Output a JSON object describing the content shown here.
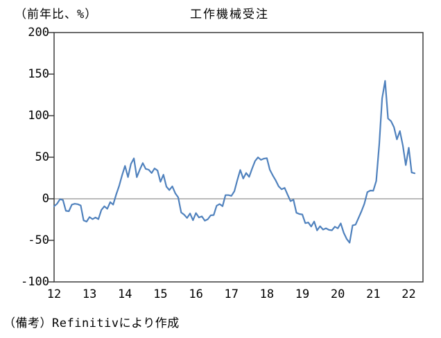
{
  "header": {
    "unit_label": "（前年比、%）",
    "title": "工作機械受注"
  },
  "footer": {
    "note": "（備考）Refinitivにより作成"
  },
  "colors": {
    "line": "#4f81bd",
    "zero_line": "#909090",
    "axis": "#3b3b3b",
    "text": "#000000",
    "background": "#ffffff"
  },
  "chart_data": {
    "type": "line",
    "title": "工作機械受注",
    "ylabel": "（前年比、%）",
    "xlabel": "",
    "frequency": "monthly",
    "x_start": "2012-01",
    "x_end": "2022-03",
    "x_tick_labels": [
      "12",
      "13",
      "14",
      "15",
      "16",
      "17",
      "18",
      "19",
      "20",
      "21",
      "22"
    ],
    "y_ticks": [
      200,
      150,
      100,
      50,
      0,
      -50,
      -100
    ],
    "ylim": [
      -100,
      200
    ],
    "grid": "zero-line-only",
    "legend": "none",
    "series": [
      {
        "name": "工作機械受注（前年比、%）",
        "values": [
          -9.0,
          -6.0,
          -0.5,
          -1.5,
          -14.5,
          -15.0,
          -7.0,
          -6.0,
          -6.5,
          -8.0,
          -26.0,
          -27.5,
          -22.0,
          -24.5,
          -22.5,
          -24.5,
          -13.5,
          -9.0,
          -12.0,
          -4.0,
          -7.0,
          5.0,
          15.4,
          28.1,
          39.6,
          26.1,
          41.8,
          48.7,
          26.0,
          35.0,
          43.0,
          36.0,
          35.0,
          31.0,
          36.5,
          34.0,
          20.4,
          28.9,
          14.6,
          10.5,
          15.0,
          6.6,
          1.7,
          -16.5,
          -19.1,
          -23.1,
          -17.7,
          -25.8,
          -17.2,
          -22.5,
          -21.2,
          -26.3,
          -24.7,
          -19.9,
          -19.6,
          -8.4,
          -6.3,
          -8.9,
          4.4,
          4.4,
          3.5,
          9.1,
          22.6,
          34.7,
          24.4,
          31.1,
          26.3,
          36.3,
          45.3,
          49.8,
          46.8,
          48.3,
          48.8,
          35.0,
          28.1,
          22.0,
          14.9,
          11.4,
          13.1,
          5.1,
          -2.8,
          -1.1,
          -16.8,
          -18.3,
          -18.8,
          -29.3,
          -28.5,
          -33.4,
          -27.3,
          -38.0,
          -33.0,
          -37.1,
          -35.5,
          -37.4,
          -37.9,
          -33.6,
          -35.6,
          -29.6,
          -40.8,
          -48.3,
          -52.8,
          -32.0,
          -31.1,
          -23.2,
          -15.0,
          -5.9,
          8.0,
          9.9,
          9.7,
          21.4,
          65.1,
          120.8,
          141.9,
          96.6,
          93.4,
          86.2,
          71.5,
          81.5,
          64.0,
          40.5,
          61.4,
          31.6,
          30.7
        ]
      }
    ]
  }
}
